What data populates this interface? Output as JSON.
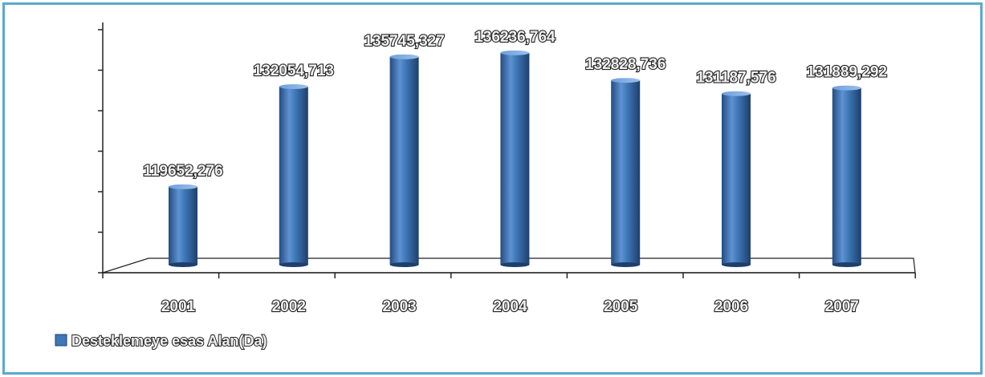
{
  "chart_data": {
    "type": "bar",
    "categories": [
      "2001",
      "2002",
      "2003",
      "2004",
      "2005",
      "2006",
      "2007"
    ],
    "series": [
      {
        "name": "Desteklemeye esas Alan(Da)",
        "values": [
          119652.276,
          132054.713,
          135745.327,
          136236.764,
          132828.736,
          131187.576,
          131889.292
        ],
        "labels": [
          "119652,276",
          "132054,713",
          "135745,327",
          "136236,764",
          "132828,736",
          "131187,576",
          "131889,292"
        ]
      }
    ],
    "ylim": [
      110000,
      140000
    ],
    "legend_position": "bottom-left",
    "colors": {
      "bar": "#3f78b8",
      "bar_dark": "#244c80",
      "bar_light": "#8fb6e4",
      "frame": "#5aa9d0"
    }
  }
}
